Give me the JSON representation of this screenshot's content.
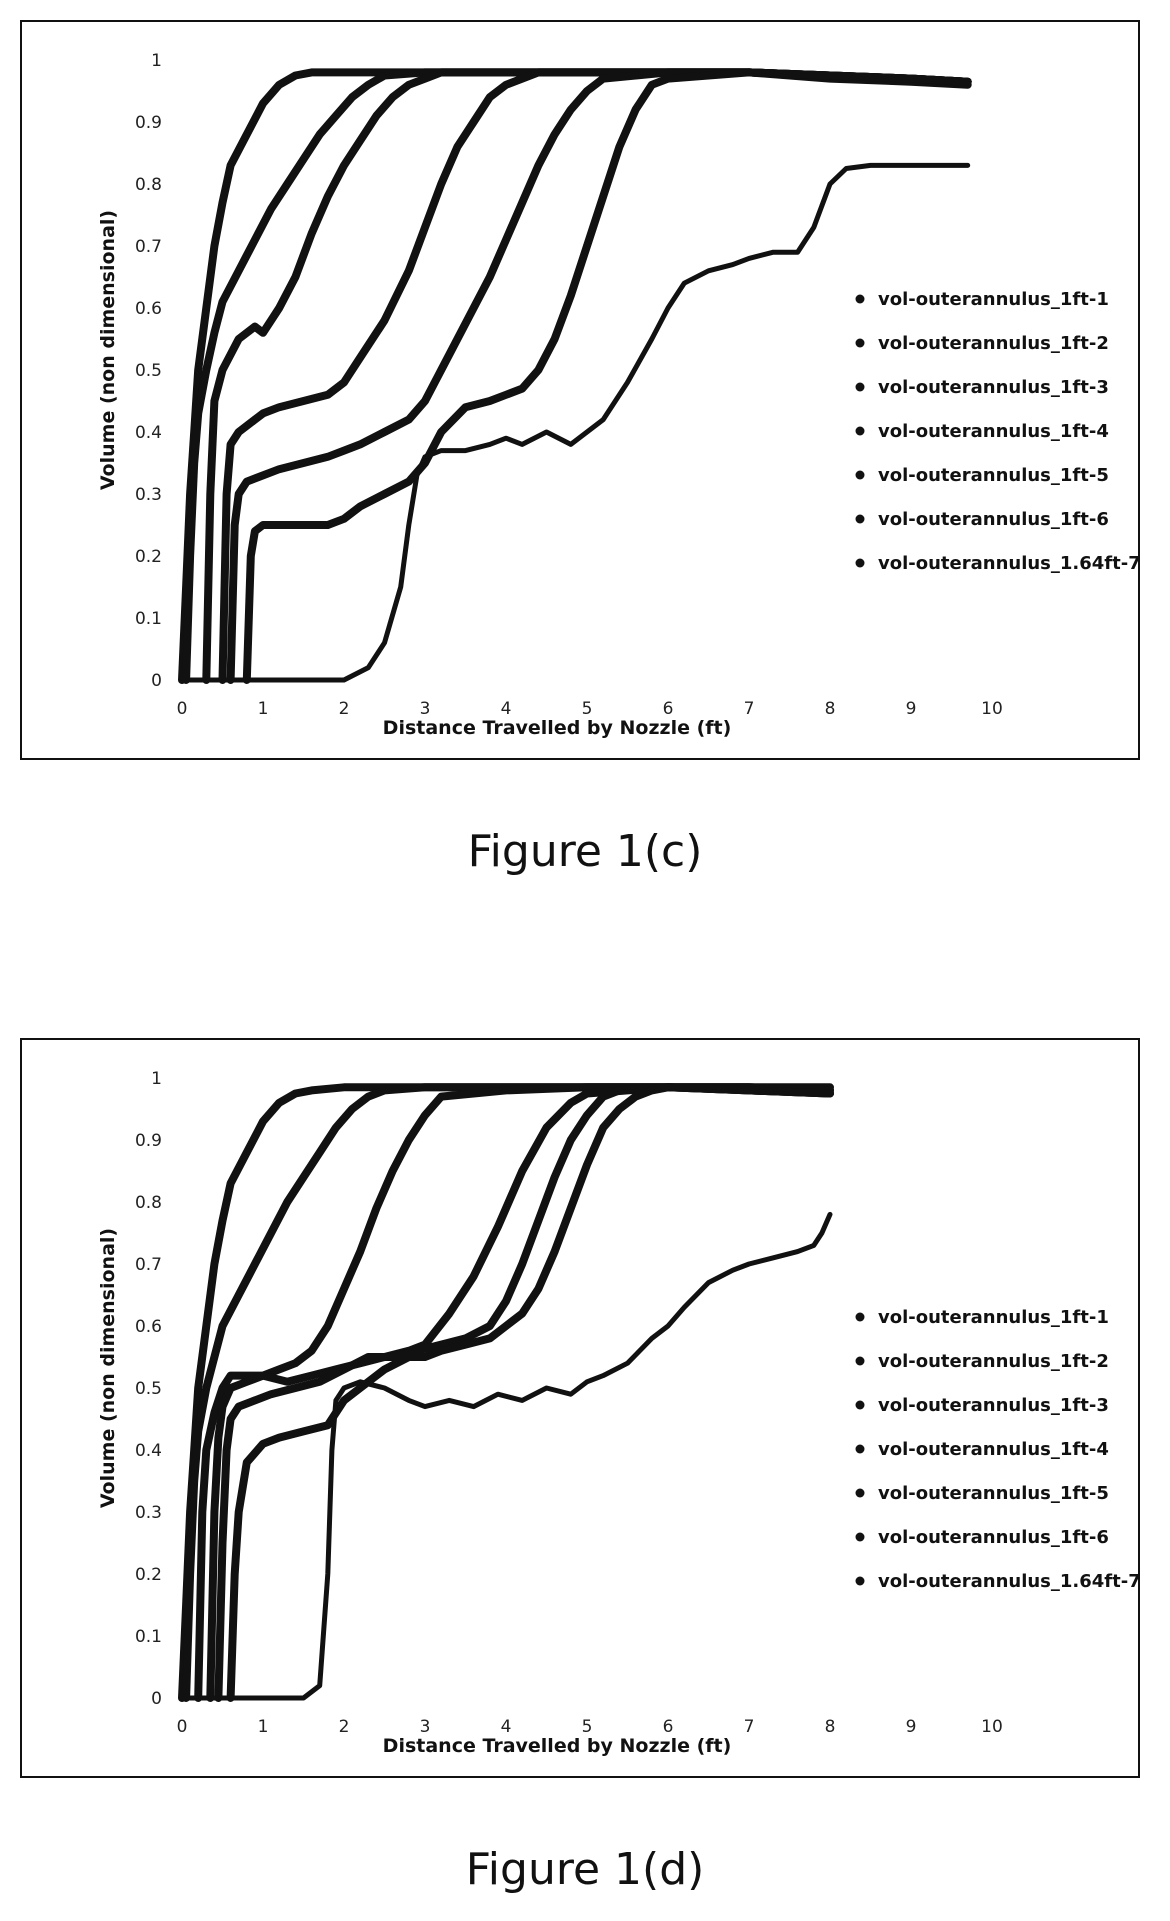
{
  "captions": [
    "Figure 1(c)",
    "Figure 1(d)"
  ],
  "chart_data": [
    {
      "type": "line",
      "title": "",
      "xlabel": "Distance Travelled by Nozzle (ft)",
      "ylabel": "Volume (non dimensional)",
      "xlim": [
        0,
        10
      ],
      "ylim": [
        0,
        1
      ],
      "x_ticks": [
        "0",
        "1",
        "2",
        "3",
        "4",
        "5",
        "6",
        "7",
        "8",
        "9",
        "10"
      ],
      "y_ticks": [
        "0",
        "0.1",
        "0.2",
        "0.3",
        "0.4",
        "0.5",
        "0.6",
        "0.7",
        "0.8",
        "0.9",
        "1"
      ],
      "grid": false,
      "legend_position": "right",
      "line_color": "#111111",
      "series": [
        {
          "name": "vol-outerannulus_1ft-1",
          "x": [
            0,
            0.05,
            0.1,
            0.15,
            0.2,
            0.3,
            0.4,
            0.5,
            0.6,
            0.8,
            1.0,
            1.2,
            1.4,
            1.6,
            2.0,
            3,
            4,
            5,
            6,
            7,
            8,
            9,
            9.7
          ],
          "y": [
            0,
            0.15,
            0.3,
            0.4,
            0.5,
            0.6,
            0.7,
            0.77,
            0.83,
            0.88,
            0.93,
            0.96,
            0.975,
            0.98,
            0.98,
            0.98,
            0.98,
            0.98,
            0.98,
            0.98,
            0.97,
            0.965,
            0.96
          ]
        },
        {
          "name": "vol-outerannulus_1ft-2",
          "x": [
            0.05,
            0.1,
            0.15,
            0.2,
            0.3,
            0.4,
            0.5,
            0.7,
            0.9,
            1.1,
            1.3,
            1.5,
            1.7,
            1.9,
            2.1,
            2.3,
            2.5,
            3,
            4,
            5,
            6,
            7,
            8,
            9,
            9.7
          ],
          "y": [
            0,
            0.2,
            0.35,
            0.43,
            0.5,
            0.56,
            0.61,
            0.66,
            0.71,
            0.76,
            0.8,
            0.84,
            0.88,
            0.91,
            0.94,
            0.96,
            0.975,
            0.98,
            0.98,
            0.98,
            0.98,
            0.98,
            0.975,
            0.97,
            0.965
          ]
        },
        {
          "name": "vol-outerannulus_1ft-3",
          "x": [
            0.3,
            0.35,
            0.4,
            0.5,
            0.7,
            0.9,
            1.0,
            1.1,
            1.2,
            1.4,
            1.6,
            1.8,
            2.0,
            2.2,
            2.4,
            2.6,
            2.8,
            3.0,
            3.2,
            4,
            5,
            6,
            7,
            8,
            9,
            9.7
          ],
          "y": [
            0,
            0.3,
            0.45,
            0.5,
            0.55,
            0.57,
            0.56,
            0.58,
            0.6,
            0.65,
            0.72,
            0.78,
            0.83,
            0.87,
            0.91,
            0.94,
            0.96,
            0.97,
            0.98,
            0.98,
            0.98,
            0.98,
            0.98,
            0.975,
            0.97,
            0.965
          ]
        },
        {
          "name": "vol-outerannulus_1ft-4",
          "x": [
            0.5,
            0.55,
            0.6,
            0.7,
            0.9,
            1.0,
            1.2,
            1.5,
            1.8,
            2.0,
            2.2,
            2.5,
            2.8,
            3.0,
            3.2,
            3.4,
            3.6,
            3.8,
            4.0,
            4.2,
            4.4,
            5,
            6,
            7,
            8,
            9,
            9.7
          ],
          "y": [
            0,
            0.3,
            0.38,
            0.4,
            0.42,
            0.43,
            0.44,
            0.45,
            0.46,
            0.48,
            0.52,
            0.58,
            0.66,
            0.73,
            0.8,
            0.86,
            0.9,
            0.94,
            0.96,
            0.97,
            0.98,
            0.98,
            0.98,
            0.98,
            0.975,
            0.97,
            0.965
          ]
        },
        {
          "name": "vol-outerannulus_1ft-5",
          "x": [
            0.6,
            0.65,
            0.7,
            0.8,
            1.0,
            1.2,
            1.5,
            1.8,
            2.0,
            2.2,
            2.5,
            2.8,
            3.0,
            3.2,
            3.4,
            3.6,
            3.8,
            4.0,
            4.2,
            4.4,
            4.6,
            4.8,
            5.0,
            5.2,
            6,
            7,
            8,
            9,
            9.7
          ],
          "y": [
            0,
            0.25,
            0.3,
            0.32,
            0.33,
            0.34,
            0.35,
            0.36,
            0.37,
            0.38,
            0.4,
            0.42,
            0.45,
            0.5,
            0.55,
            0.6,
            0.65,
            0.71,
            0.77,
            0.83,
            0.88,
            0.92,
            0.95,
            0.97,
            0.98,
            0.98,
            0.975,
            0.97,
            0.965
          ]
        },
        {
          "name": "vol-outerannulus_1ft-6",
          "x": [
            0.8,
            0.85,
            0.9,
            1.0,
            1.2,
            1.5,
            1.8,
            2.0,
            2.2,
            2.5,
            2.8,
            3.0,
            3.2,
            3.5,
            3.8,
            4.0,
            4.2,
            4.4,
            4.6,
            4.8,
            5.0,
            5.2,
            5.4,
            5.6,
            5.8,
            6,
            7,
            8,
            9,
            9.7
          ],
          "y": [
            0,
            0.2,
            0.24,
            0.25,
            0.25,
            0.25,
            0.25,
            0.26,
            0.28,
            0.3,
            0.32,
            0.35,
            0.4,
            0.44,
            0.45,
            0.46,
            0.47,
            0.5,
            0.55,
            0.62,
            0.7,
            0.78,
            0.86,
            0.92,
            0.96,
            0.97,
            0.98,
            0.975,
            0.97,
            0.965
          ]
        },
        {
          "name": "vol-outerannulus_1.64ft-7",
          "x": [
            0,
            2.0,
            2.3,
            2.5,
            2.7,
            2.8,
            2.9,
            3.0,
            3.2,
            3.5,
            3.8,
            4.0,
            4.2,
            4.5,
            4.8,
            5.0,
            5.2,
            5.5,
            5.8,
            6.0,
            6.2,
            6.5,
            6.8,
            7.0,
            7.3,
            7.6,
            7.8,
            8.0,
            8.2,
            8.5,
            9.0,
            9.5,
            9.7
          ],
          "y": [
            0,
            0,
            0.02,
            0.06,
            0.15,
            0.25,
            0.33,
            0.36,
            0.37,
            0.37,
            0.38,
            0.39,
            0.38,
            0.4,
            0.38,
            0.4,
            0.42,
            0.48,
            0.55,
            0.6,
            0.64,
            0.66,
            0.67,
            0.68,
            0.69,
            0.69,
            0.73,
            0.8,
            0.825,
            0.83,
            0.83,
            0.83,
            0.83
          ]
        }
      ]
    },
    {
      "type": "line",
      "title": "",
      "xlabel": "Distance Travelled by Nozzle (ft)",
      "ylabel": "Volume (non dimensional)",
      "xlim": [
        0,
        10
      ],
      "ylim": [
        0,
        1
      ],
      "x_ticks": [
        "0",
        "1",
        "2",
        "3",
        "4",
        "5",
        "6",
        "7",
        "8",
        "9",
        "10"
      ],
      "y_ticks": [
        "0",
        "0.1",
        "0.2",
        "0.3",
        "0.4",
        "0.5",
        "0.6",
        "0.7",
        "0.8",
        "0.9",
        "1"
      ],
      "grid": false,
      "legend_position": "right",
      "line_color": "#111111",
      "series": [
        {
          "name": "vol-outerannulus_1ft-1",
          "x": [
            0,
            0.05,
            0.1,
            0.15,
            0.2,
            0.3,
            0.4,
            0.5,
            0.6,
            0.8,
            1.0,
            1.2,
            1.4,
            1.6,
            2.0,
            3,
            4,
            5,
            6,
            7,
            8
          ],
          "y": [
            0,
            0.15,
            0.3,
            0.4,
            0.5,
            0.6,
            0.7,
            0.77,
            0.83,
            0.88,
            0.93,
            0.96,
            0.975,
            0.98,
            0.985,
            0.985,
            0.985,
            0.985,
            0.985,
            0.985,
            0.985
          ]
        },
        {
          "name": "vol-outerannulus_1ft-2",
          "x": [
            0.05,
            0.1,
            0.15,
            0.2,
            0.3,
            0.4,
            0.5,
            0.7,
            0.9,
            1.1,
            1.3,
            1.5,
            1.7,
            1.9,
            2.1,
            2.3,
            2.5,
            3,
            4,
            5,
            6,
            7,
            8
          ],
          "y": [
            0,
            0.2,
            0.35,
            0.43,
            0.5,
            0.55,
            0.6,
            0.65,
            0.7,
            0.75,
            0.8,
            0.84,
            0.88,
            0.92,
            0.95,
            0.97,
            0.98,
            0.985,
            0.985,
            0.985,
            0.985,
            0.985,
            0.98
          ]
        },
        {
          "name": "vol-outerannulus_1ft-3",
          "x": [
            0.2,
            0.25,
            0.3,
            0.4,
            0.5,
            0.6,
            0.8,
            1.0,
            1.2,
            1.4,
            1.6,
            1.8,
            2.0,
            2.2,
            2.4,
            2.6,
            2.8,
            3.0,
            3.2,
            4,
            5,
            6,
            7,
            8
          ],
          "y": [
            0,
            0.3,
            0.4,
            0.46,
            0.5,
            0.52,
            0.52,
            0.52,
            0.53,
            0.54,
            0.56,
            0.6,
            0.66,
            0.72,
            0.79,
            0.85,
            0.9,
            0.94,
            0.97,
            0.98,
            0.985,
            0.985,
            0.985,
            0.98
          ]
        },
        {
          "name": "vol-outerannulus_1ft-4",
          "x": [
            0.35,
            0.4,
            0.45,
            0.5,
            0.6,
            0.8,
            1.0,
            1.3,
            1.6,
            1.9,
            2.2,
            2.5,
            2.8,
            3.0,
            3.3,
            3.6,
            3.9,
            4.2,
            4.5,
            4.8,
            5,
            6,
            7,
            8
          ],
          "y": [
            0,
            0.3,
            0.42,
            0.47,
            0.5,
            0.51,
            0.52,
            0.51,
            0.52,
            0.53,
            0.54,
            0.55,
            0.56,
            0.57,
            0.62,
            0.68,
            0.76,
            0.85,
            0.92,
            0.96,
            0.975,
            0.985,
            0.98,
            0.975
          ]
        },
        {
          "name": "vol-outerannulus_1ft-5",
          "x": [
            0.45,
            0.5,
            0.55,
            0.6,
            0.7,
            0.9,
            1.1,
            1.4,
            1.7,
            2.0,
            2.3,
            2.6,
            2.9,
            3.2,
            3.5,
            3.8,
            4.0,
            4.2,
            4.4,
            4.6,
            4.8,
            5.0,
            5.2,
            5.4,
            6,
            7,
            8
          ],
          "y": [
            0,
            0.25,
            0.4,
            0.45,
            0.47,
            0.48,
            0.49,
            0.5,
            0.51,
            0.53,
            0.55,
            0.55,
            0.56,
            0.57,
            0.58,
            0.6,
            0.64,
            0.7,
            0.77,
            0.84,
            0.9,
            0.94,
            0.97,
            0.98,
            0.985,
            0.98,
            0.975
          ]
        },
        {
          "name": "vol-outerannulus_1ft-6",
          "x": [
            0.6,
            0.65,
            0.7,
            0.8,
            1.0,
            1.2,
            1.5,
            1.8,
            2.0,
            2.2,
            2.5,
            2.8,
            3.0,
            3.2,
            3.5,
            3.8,
            4.0,
            4.2,
            4.4,
            4.6,
            4.8,
            5.0,
            5.2,
            5.4,
            5.6,
            5.8,
            6,
            7,
            8
          ],
          "y": [
            0,
            0.2,
            0.3,
            0.38,
            0.41,
            0.42,
            0.43,
            0.44,
            0.48,
            0.5,
            0.53,
            0.55,
            0.55,
            0.56,
            0.57,
            0.58,
            0.6,
            0.62,
            0.66,
            0.72,
            0.79,
            0.86,
            0.92,
            0.95,
            0.97,
            0.98,
            0.985,
            0.98,
            0.975
          ]
        },
        {
          "name": "vol-outerannulus_1.64ft-7",
          "x": [
            0,
            1.5,
            1.7,
            1.8,
            1.85,
            1.9,
            2.0,
            2.2,
            2.5,
            2.8,
            3.0,
            3.3,
            3.6,
            3.9,
            4.2,
            4.5,
            4.8,
            5.0,
            5.2,
            5.5,
            5.8,
            6.0,
            6.2,
            6.5,
            6.8,
            7.0,
            7.3,
            7.6,
            7.8,
            7.9,
            8.0
          ],
          "y": [
            0,
            0,
            0.02,
            0.2,
            0.4,
            0.48,
            0.5,
            0.51,
            0.5,
            0.48,
            0.47,
            0.48,
            0.47,
            0.49,
            0.48,
            0.5,
            0.49,
            0.51,
            0.52,
            0.54,
            0.58,
            0.6,
            0.63,
            0.67,
            0.69,
            0.7,
            0.71,
            0.72,
            0.73,
            0.75,
            0.78
          ]
        }
      ]
    }
  ]
}
